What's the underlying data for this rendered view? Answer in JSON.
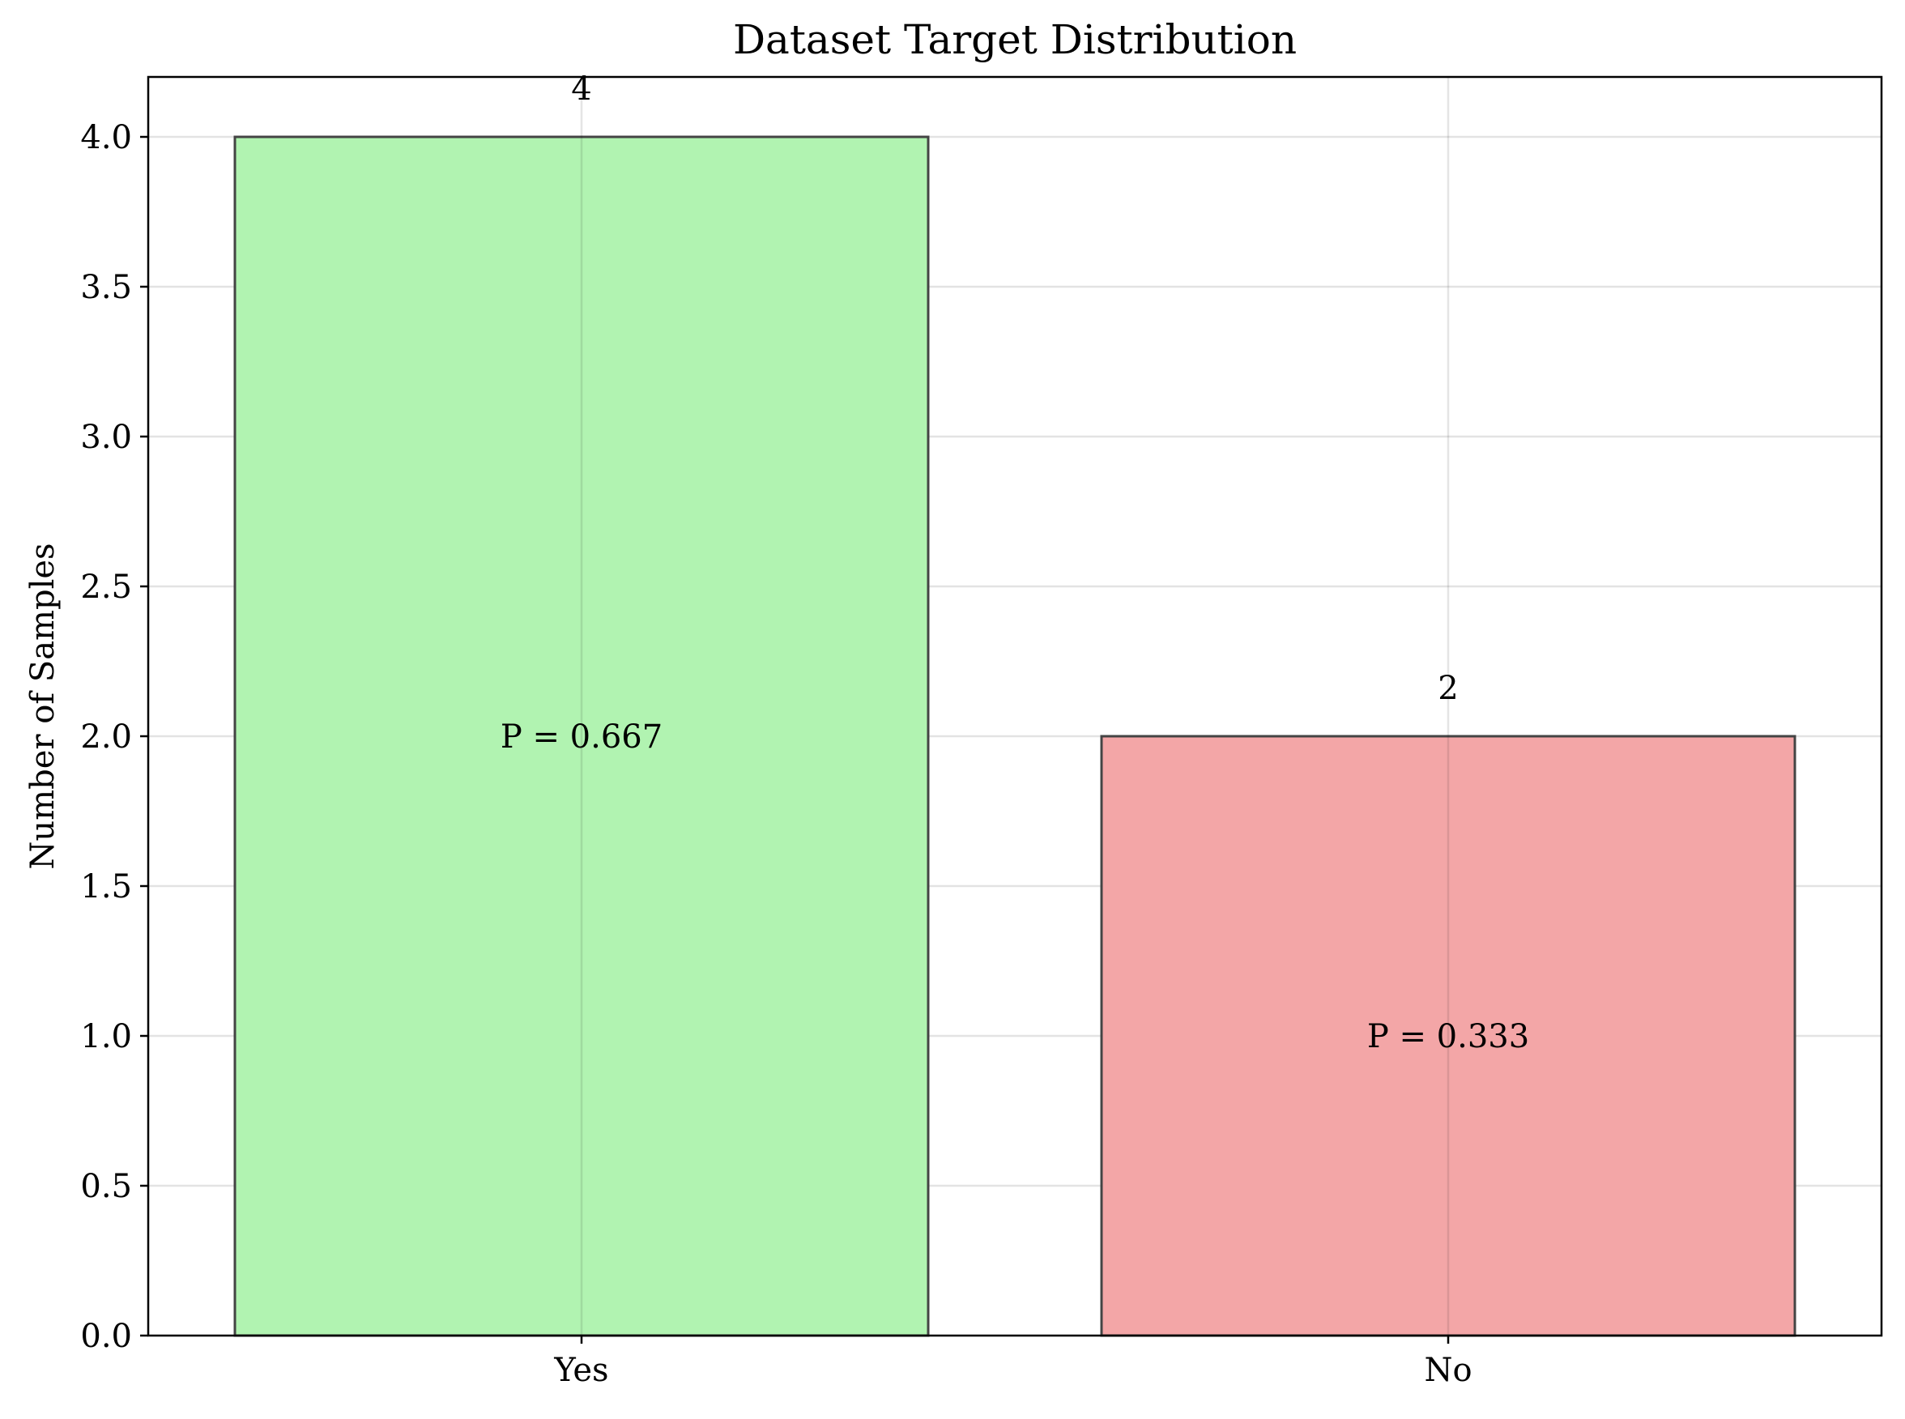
{
  "chart_data": {
    "type": "bar",
    "title": "Dataset Target Distribution",
    "xlabel": "",
    "ylabel": "Number of Samples",
    "categories": [
      "Yes",
      "No"
    ],
    "values": [
      4,
      2
    ],
    "value_labels": [
      "4",
      "2"
    ],
    "annotations": [
      "P = 0.667",
      "P = 0.333"
    ],
    "colors": [
      "#b1f3b1",
      "#f3a6a7"
    ],
    "edge_color": "#444444",
    "ylim": [
      0,
      4.2
    ],
    "yticks": [
      0.0,
      0.5,
      1.0,
      1.5,
      2.0,
      2.5,
      3.0,
      3.5,
      4.0
    ],
    "ytick_labels": [
      "0.0",
      "0.5",
      "1.0",
      "1.5",
      "2.0",
      "2.5",
      "3.0",
      "3.5",
      "4.0"
    ],
    "grid": true,
    "legend": "none"
  }
}
